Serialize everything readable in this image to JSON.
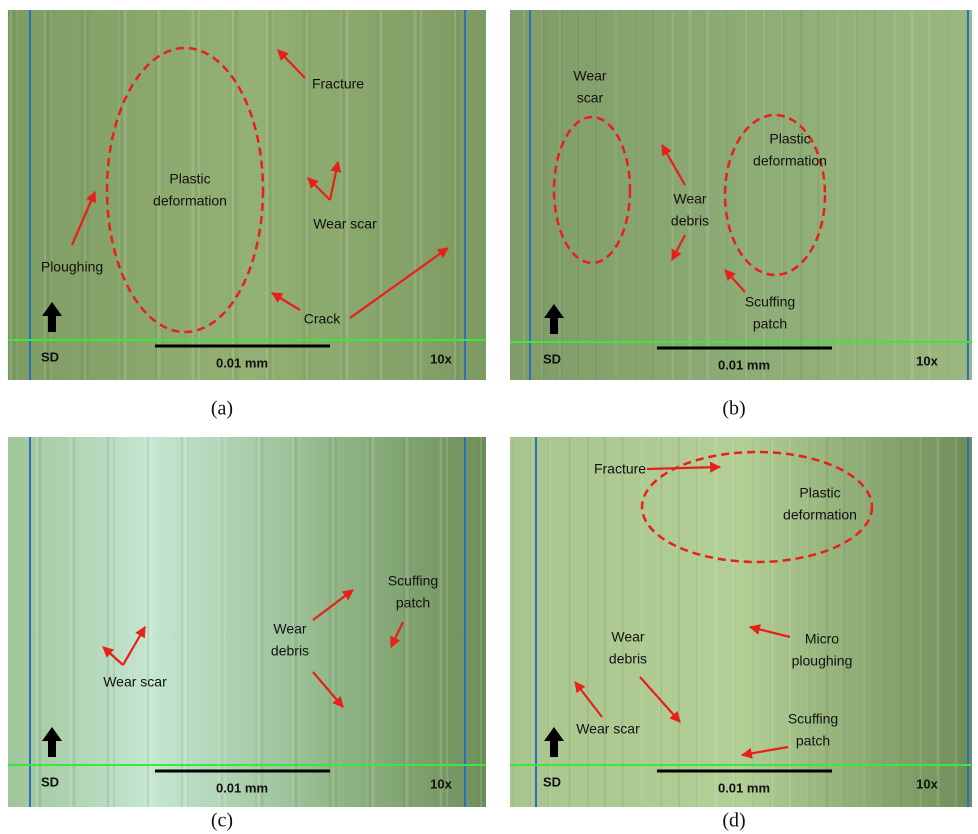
{
  "panels": [
    {
      "caption": "(a)",
      "sd": "SD",
      "scale_bar": "0.01 mm",
      "magnification": "10x",
      "annotations": [
        {
          "lines": [
            "Fracture"
          ]
        },
        {
          "lines": [
            "Plastic",
            "deformation"
          ]
        },
        {
          "lines": [
            "Wear scar"
          ]
        },
        {
          "lines": [
            "Ploughing"
          ]
        },
        {
          "lines": [
            "Crack"
          ]
        }
      ]
    },
    {
      "caption": "(b)",
      "sd": "SD",
      "scale_bar": "0.01 mm",
      "magnification": "10x",
      "annotations": [
        {
          "lines": [
            "Wear",
            "scar"
          ]
        },
        {
          "lines": [
            "Plastic",
            "deformation"
          ]
        },
        {
          "lines": [
            "Wear",
            "debris"
          ]
        },
        {
          "lines": [
            "Scuffing",
            "patch"
          ]
        }
      ]
    },
    {
      "caption": "(c)",
      "sd": "SD",
      "scale_bar": "0.01 mm",
      "magnification": "10x",
      "annotations": [
        {
          "lines": [
            "Wear scar"
          ]
        },
        {
          "lines": [
            "Wear",
            "debris"
          ]
        },
        {
          "lines": [
            "Scuffing",
            "patch"
          ]
        }
      ]
    },
    {
      "caption": "(d)",
      "sd": "SD",
      "scale_bar": "0.01 mm",
      "magnification": "10x",
      "annotations": [
        {
          "lines": [
            "Fracture"
          ]
        },
        {
          "lines": [
            "Plastic",
            "deformation"
          ]
        },
        {
          "lines": [
            "Micro",
            "ploughing"
          ]
        },
        {
          "lines": [
            "Wear",
            "debris"
          ]
        },
        {
          "lines": [
            "Wear scar"
          ]
        },
        {
          "lines": [
            "Scuffing",
            "patch"
          ]
        }
      ]
    }
  ]
}
